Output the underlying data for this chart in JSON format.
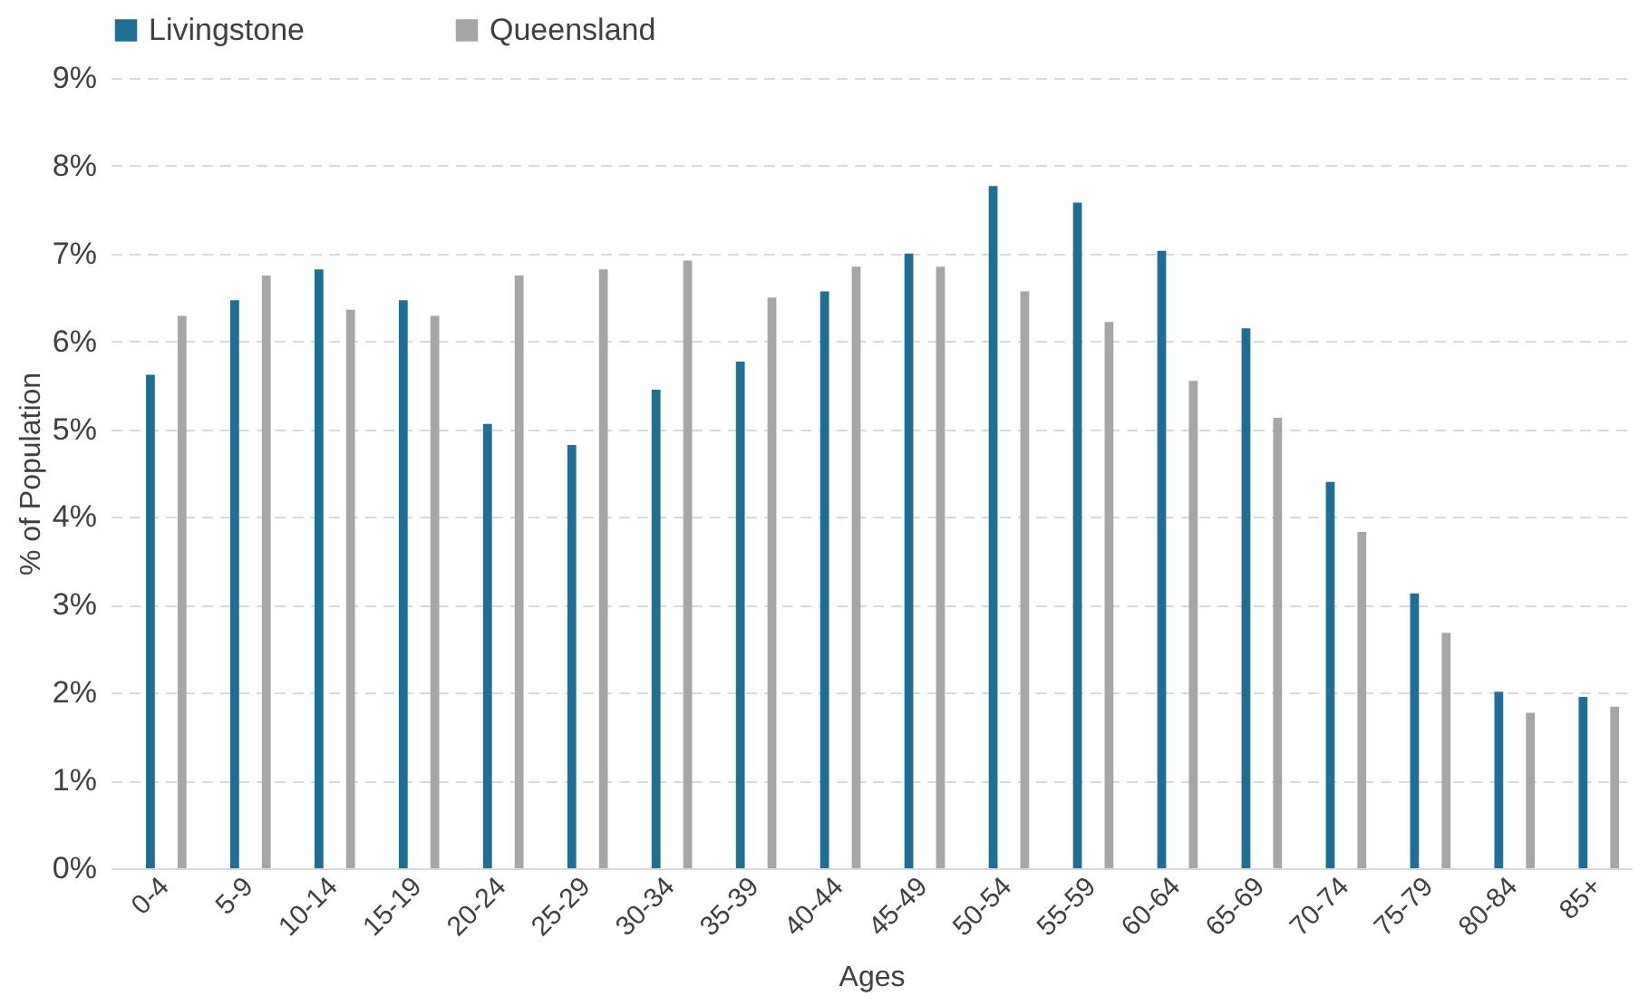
{
  "chart_data": {
    "type": "bar",
    "xlabel": "Ages",
    "ylabel": "% of Population",
    "categories": [
      "0-4",
      "5-9",
      "10-14",
      "15-19",
      "20-24",
      "25-29",
      "30-34",
      "35-39",
      "40-44",
      "45-49",
      "50-54",
      "55-59",
      "60-64",
      "65-69",
      "70-74",
      "75-79",
      "80-84",
      "85+"
    ],
    "series": [
      {
        "name": "Livingstone",
        "color": "#1f6e93",
        "values": [
          5.62,
          6.47,
          6.82,
          6.47,
          5.06,
          4.82,
          5.45,
          5.77,
          6.57,
          7.0,
          7.77,
          7.58,
          7.03,
          6.15,
          4.4,
          3.13,
          2.01,
          1.95
        ]
      },
      {
        "name": "Queensland",
        "color": "#a6a6a6",
        "values": [
          6.29,
          6.75,
          6.36,
          6.29,
          6.75,
          6.82,
          6.92,
          6.5,
          6.85,
          6.85,
          6.57,
          6.22,
          5.55,
          5.13,
          3.83,
          2.68,
          1.77,
          1.84
        ]
      }
    ],
    "ylim": [
      0,
      9
    ],
    "yticks": [
      {
        "value": 0,
        "label": "0%"
      },
      {
        "value": 1,
        "label": "1%"
      },
      {
        "value": 2,
        "label": "2%"
      },
      {
        "value": 3,
        "label": "3%"
      },
      {
        "value": 4,
        "label": "4%"
      },
      {
        "value": 5,
        "label": "5%"
      },
      {
        "value": 6,
        "label": "6%"
      },
      {
        "value": 7,
        "label": "7%"
      },
      {
        "value": 8,
        "label": "8%"
      },
      {
        "value": 9,
        "label": "9%"
      }
    ],
    "grid": "y",
    "legend": "top"
  }
}
